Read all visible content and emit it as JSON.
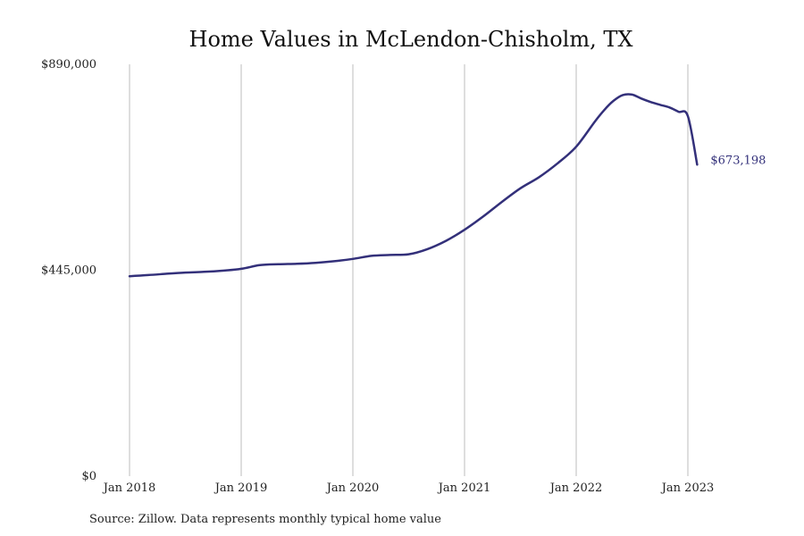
{
  "chart_data": {
    "type": "line",
    "title": "Home Values in McLendon-Chisholm, TX",
    "source": "Source: Zillow. Data represents monthly typical home value",
    "end_label": "$673,198",
    "x_ticks": [
      "Jan 2018",
      "Jan 2019",
      "Jan 2020",
      "Jan 2021",
      "Jan 2022",
      "Jan 2023"
    ],
    "y_ticks": [
      {
        "value": 0,
        "label": "$0"
      },
      {
        "value": 445000,
        "label": "$445,000"
      },
      {
        "value": 890000,
        "label": "$890,000"
      }
    ],
    "ylim": [
      0,
      890000
    ],
    "xlim": [
      "2018-01",
      "2023-02"
    ],
    "grid": "vertical",
    "line_color": "#33307a",
    "series": [
      {
        "x": [
          "2018-01",
          "2018-03",
          "2018-05",
          "2018-07",
          "2018-09",
          "2018-11",
          "2019-01",
          "2019-03",
          "2019-05",
          "2019-07",
          "2019-09",
          "2019-11",
          "2020-01",
          "2020-03",
          "2020-05",
          "2020-07",
          "2020-09",
          "2020-11",
          "2021-01",
          "2021-03",
          "2021-05",
          "2021-07",
          "2021-09",
          "2021-11",
          "2022-01",
          "2022-03",
          "2022-04",
          "2022-05",
          "2022-06",
          "2022-07",
          "2022-08",
          "2022-09",
          "2022-10",
          "2022-11",
          "2022-12",
          "2023-01",
          "2023-02"
        ],
        "values": [
          432000,
          434500,
          437500,
          440000,
          441500,
          444000,
          448000,
          456000,
          458000,
          459000,
          461000,
          464500,
          469500,
          476000,
          478000,
          479500,
          490500,
          508500,
          532500,
          561000,
          592500,
          622000,
          646000,
          676000,
          712000,
          766000,
          791000,
          811000,
          823500,
          824500,
          816000,
          808500,
          802500,
          797000,
          787500,
          778000,
          673198
        ]
      }
    ]
  }
}
